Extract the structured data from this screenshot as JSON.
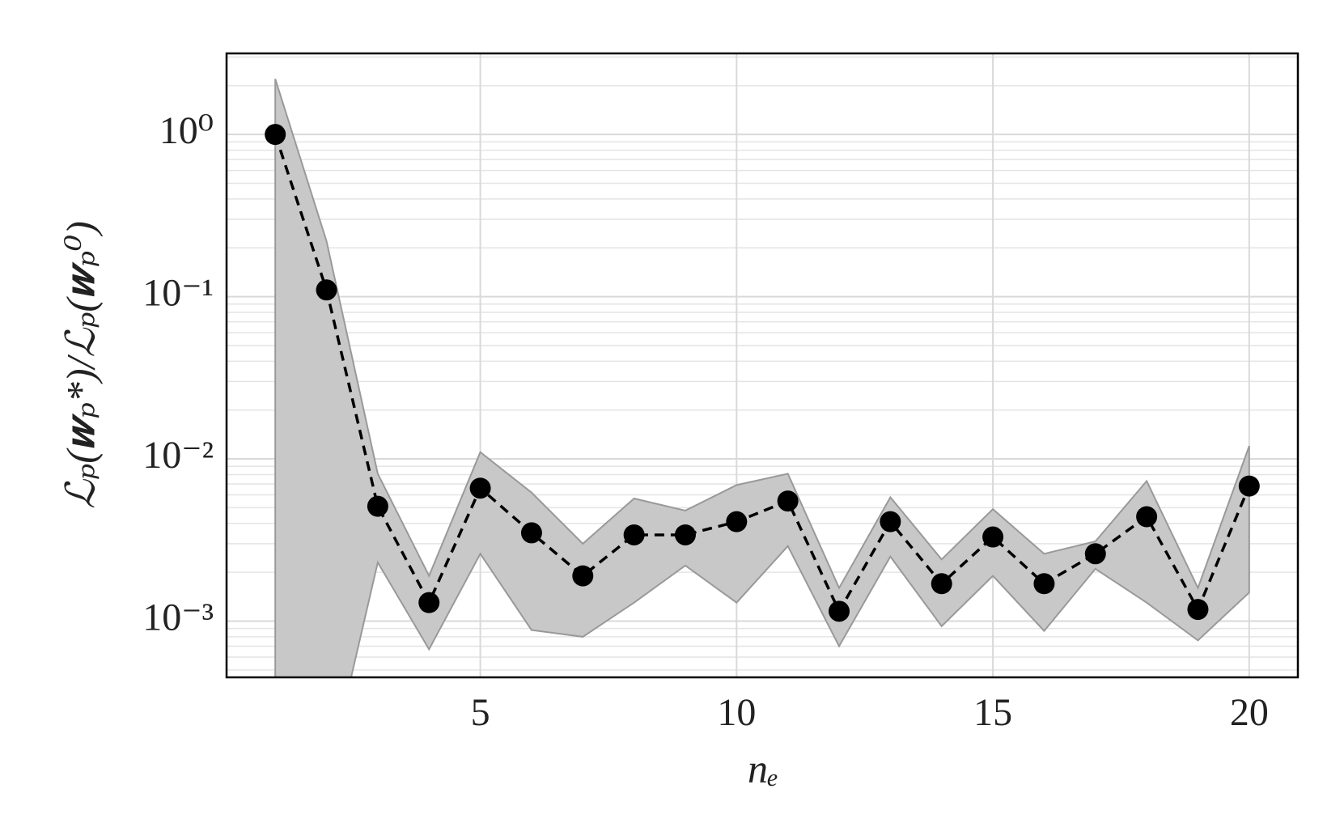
{
  "chart_data": {
    "type": "line",
    "x": [
      1,
      2,
      3,
      4,
      5,
      6,
      7,
      8,
      9,
      10,
      11,
      12,
      13,
      14,
      15,
      16,
      17,
      18,
      19,
      20
    ],
    "values": [
      1.0,
      0.11,
      0.0051,
      0.0013,
      0.0066,
      0.0035,
      0.0019,
      0.0034,
      0.0034,
      0.0041,
      0.0055,
      0.00115,
      0.0041,
      0.0017,
      0.0033,
      0.0017,
      0.0026,
      0.0044,
      0.00118,
      0.0068
    ],
    "upper": [
      2.2,
      0.22,
      0.0081,
      0.0019,
      0.011,
      0.0062,
      0.003,
      0.0057,
      0.0048,
      0.0069,
      0.0081,
      0.0016,
      0.0058,
      0.0024,
      0.0049,
      0.0026,
      0.0031,
      0.0073,
      0.0016,
      0.012
    ],
    "lower": [
      0.0001,
      0.0001,
      0.0023,
      0.00067,
      0.0026,
      0.00088,
      0.0008,
      0.0013,
      0.0022,
      0.0013,
      0.0029,
      0.0007,
      0.0025,
      0.00093,
      0.0019,
      0.00087,
      0.0021,
      0.0013,
      0.00076,
      0.0015
    ],
    "color": "#000000",
    "band_color": "#c8c8c8",
    "xlabel": "nₑ",
    "ylabel": "ℒₚ(𝒘ₚ*)/ℒₚ(𝒘ₚ⁰)",
    "xlim": [
      0.05,
      20.95
    ],
    "xticks": [
      5,
      10,
      15,
      20
    ],
    "ylim": [
      0.00045,
      3.16
    ],
    "log_y": true,
    "yticks": [
      {
        "value": 0.001,
        "label": "10⁻³"
      },
      {
        "value": 0.01,
        "label": "10⁻²"
      },
      {
        "value": 0.1,
        "label": "10⁻¹"
      },
      {
        "value": 1,
        "label": "10⁰"
      }
    ],
    "grid": true,
    "minor_grid": true
  }
}
